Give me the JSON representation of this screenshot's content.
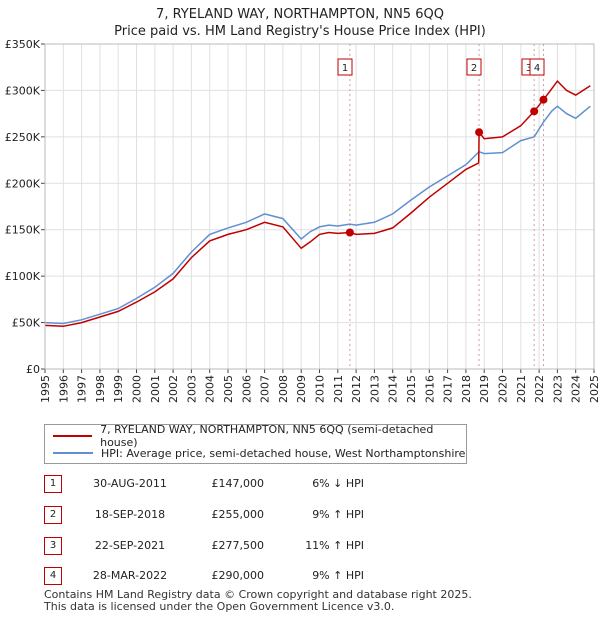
{
  "title_line1": "7, RYELAND WAY, NORTHAMPTON, NN5 6QQ",
  "title_line2": "Price paid vs. HM Land Registry's House Price Index (HPI)",
  "colors": {
    "property": "#c00000",
    "hpi": "#6090d0",
    "grid": "#e0e0e0",
    "marker_line": "#d0a0a0"
  },
  "legend": {
    "property_label": "7, RYELAND WAY, NORTHAMPTON, NN5 6QQ (semi-detached house)",
    "hpi_label": "HPI: Average price, semi-detached house, West Northamptonshire"
  },
  "transactions": [
    {
      "num": "1",
      "date": "30-AUG-2011",
      "price": "£147,000",
      "hpi": "6% ↓ HPI"
    },
    {
      "num": "2",
      "date": "18-SEP-2018",
      "price": "£255,000",
      "hpi": "9% ↑ HPI"
    },
    {
      "num": "3",
      "date": "22-SEP-2021",
      "price": "£277,500",
      "hpi": "11% ↑ HPI"
    },
    {
      "num": "4",
      "date": "28-MAR-2022",
      "price": "£290,000",
      "hpi": "9% ↑ HPI"
    }
  ],
  "footer_line1": "Contains HM Land Registry data © Crown copyright and database right 2025.",
  "footer_line2": "This data is licensed under the Open Government Licence v3.0.",
  "chart_data": {
    "type": "line",
    "title": "Price paid vs. HM Land Registry's House Price Index (HPI)",
    "xlabel": "",
    "ylabel": "",
    "xlim": [
      1995,
      2025
    ],
    "ylim": [
      0,
      350000
    ],
    "x_ticks": [
      1995,
      1996,
      1997,
      1998,
      1999,
      2000,
      2001,
      2002,
      2003,
      2004,
      2005,
      2006,
      2007,
      2008,
      2009,
      2010,
      2011,
      2012,
      2013,
      2014,
      2015,
      2016,
      2017,
      2018,
      2019,
      2020,
      2021,
      2022,
      2023,
      2024,
      2025
    ],
    "y_ticks": [
      {
        "value": 0,
        "label": "£0"
      },
      {
        "value": 50000,
        "label": "£50K"
      },
      {
        "value": 100000,
        "label": "£100K"
      },
      {
        "value": 150000,
        "label": "£150K"
      },
      {
        "value": 200000,
        "label": "£200K"
      },
      {
        "value": 250000,
        "label": "£250K"
      },
      {
        "value": 300000,
        "label": "£300K"
      },
      {
        "value": 350000,
        "label": "£350K"
      }
    ],
    "grid": true,
    "series": [
      {
        "name": "7, RYELAND WAY, NORTHAMPTON, NN5 6QQ (semi-detached house)",
        "points": [
          [
            1995,
            47000
          ],
          [
            1996,
            46000
          ],
          [
            1997,
            50000
          ],
          [
            1998,
            56000
          ],
          [
            1999,
            62000
          ],
          [
            2000,
            72000
          ],
          [
            2001,
            83000
          ],
          [
            2002,
            97000
          ],
          [
            2003,
            120000
          ],
          [
            2004,
            138000
          ],
          [
            2005,
            145000
          ],
          [
            2006,
            150000
          ],
          [
            2007,
            158000
          ],
          [
            2008,
            153000
          ],
          [
            2009,
            130000
          ],
          [
            2009.5,
            137000
          ],
          [
            2010,
            145000
          ],
          [
            2010.5,
            147000
          ],
          [
            2011,
            146000
          ],
          [
            2011.66,
            147000
          ],
          [
            2012,
            145000
          ],
          [
            2013,
            146000
          ],
          [
            2014,
            152000
          ],
          [
            2015,
            168000
          ],
          [
            2016,
            185000
          ],
          [
            2017,
            200000
          ],
          [
            2018,
            215000
          ],
          [
            2018.7,
            222000
          ],
          [
            2018.72,
            255000
          ],
          [
            2019,
            248000
          ],
          [
            2020,
            250000
          ],
          [
            2021,
            262000
          ],
          [
            2021.73,
            277500
          ],
          [
            2022.24,
            290000
          ],
          [
            2022.7,
            302000
          ],
          [
            2023,
            310000
          ],
          [
            2023.5,
            300000
          ],
          [
            2024,
            295000
          ],
          [
            2024.8,
            305000
          ]
        ]
      },
      {
        "name": "HPI: Average price, semi-detached house, West Northamptonshire",
        "points": [
          [
            1995,
            50000
          ],
          [
            1996,
            49000
          ],
          [
            1997,
            53000
          ],
          [
            1998,
            59000
          ],
          [
            1999,
            65000
          ],
          [
            2000,
            76000
          ],
          [
            2001,
            88000
          ],
          [
            2002,
            103000
          ],
          [
            2003,
            126000
          ],
          [
            2004,
            145000
          ],
          [
            2005,
            152000
          ],
          [
            2006,
            158000
          ],
          [
            2007,
            167000
          ],
          [
            2008,
            162000
          ],
          [
            2009,
            140000
          ],
          [
            2009.5,
            148000
          ],
          [
            2010,
            153000
          ],
          [
            2010.5,
            155000
          ],
          [
            2011,
            154000
          ],
          [
            2011.66,
            156000
          ],
          [
            2012,
            155000
          ],
          [
            2013,
            158000
          ],
          [
            2014,
            167000
          ],
          [
            2015,
            182000
          ],
          [
            2016,
            196000
          ],
          [
            2017,
            208000
          ],
          [
            2018,
            220000
          ],
          [
            2018.72,
            234000
          ],
          [
            2019,
            232000
          ],
          [
            2020,
            233000
          ],
          [
            2021,
            246000
          ],
          [
            2021.73,
            250000
          ],
          [
            2022.24,
            266000
          ],
          [
            2022.7,
            278000
          ],
          [
            2023,
            283000
          ],
          [
            2023.5,
            275000
          ],
          [
            2024,
            270000
          ],
          [
            2024.8,
            283000
          ]
        ]
      }
    ],
    "sales": [
      {
        "label": "1",
        "x": 2011.66,
        "y": 147000
      },
      {
        "label": "2",
        "x": 2018.72,
        "y": 255000
      },
      {
        "label": "3",
        "x": 2021.73,
        "y": 277500
      },
      {
        "label": "4",
        "x": 2022.24,
        "y": 290000
      }
    ]
  }
}
